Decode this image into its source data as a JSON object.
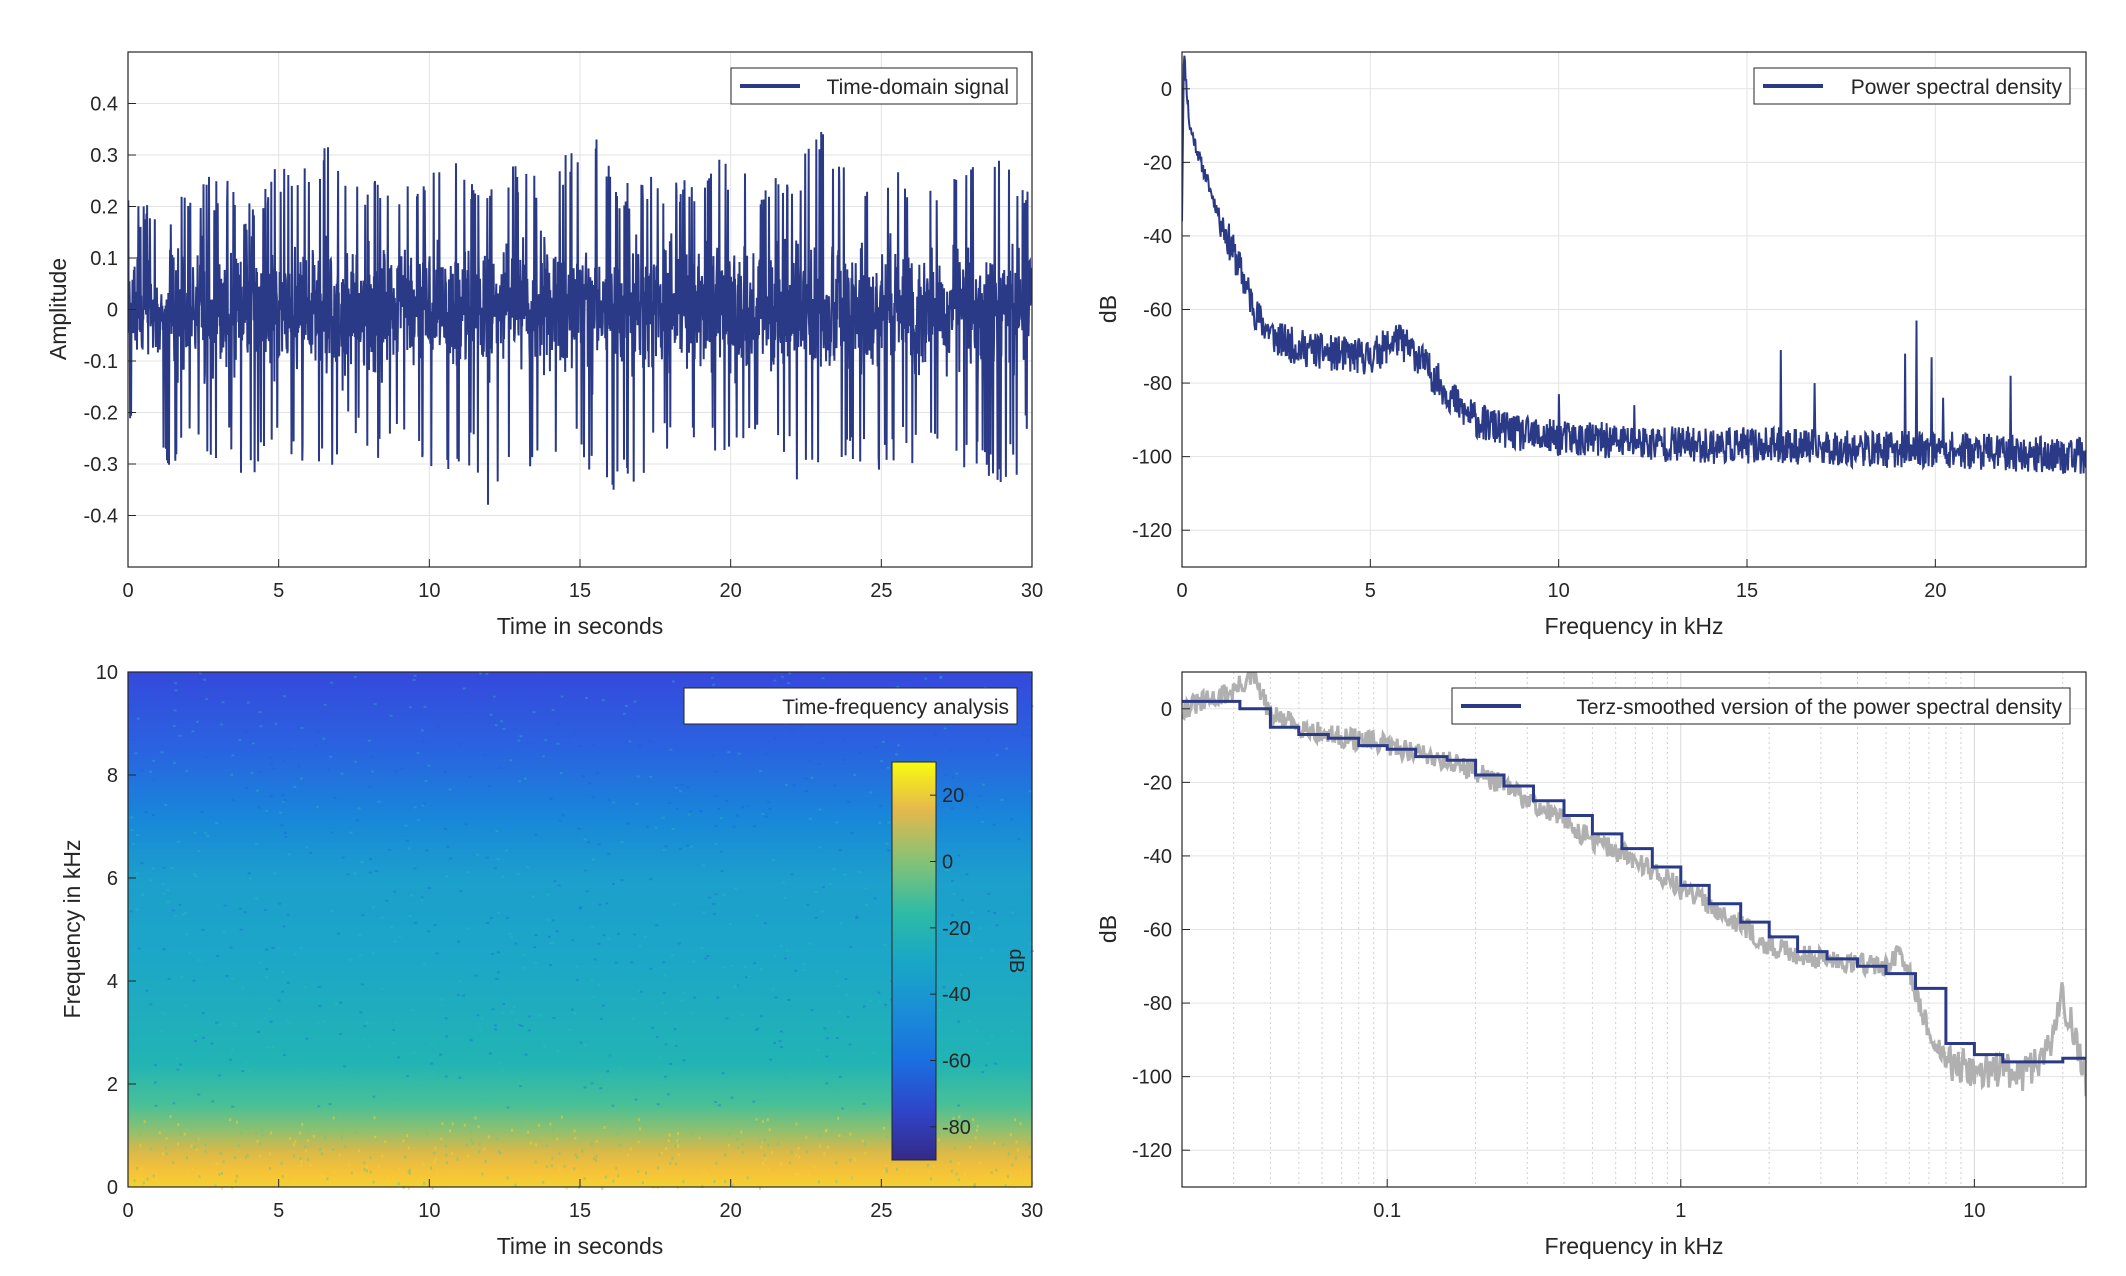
{
  "figure": {
    "panels": [
      {
        "id": "time-domain",
        "legend": "Time-domain signal",
        "xlabel": "Time in seconds",
        "ylabel": "Amplitude",
        "xticks": [
          "0",
          "5",
          "10",
          "15",
          "20",
          "25",
          "30"
        ],
        "yticks": [
          "-0.4",
          "-0.3",
          "-0.2",
          "-0.1",
          "0",
          "0.1",
          "0.2",
          "0.3",
          "0.4"
        ]
      },
      {
        "id": "psd",
        "legend": "Power spectral density",
        "xlabel": "Frequency in kHz",
        "ylabel": "dB",
        "xticks": [
          "0",
          "5",
          "10",
          "15",
          "20"
        ],
        "yticks": [
          "-120",
          "-100",
          "-80",
          "-60",
          "-40",
          "-20",
          "0"
        ]
      },
      {
        "id": "spectrogram",
        "legend": "Time-frequency analysis",
        "xlabel": "Time in seconds",
        "ylabel": "Frequency in kHz",
        "xticks": [
          "0",
          "5",
          "10",
          "15",
          "20",
          "25",
          "30"
        ],
        "yticks": [
          "0",
          "2",
          "4",
          "6",
          "8",
          "10"
        ],
        "colorbar_label": "dB",
        "colorbar_ticks": [
          "20",
          "0",
          "-20",
          "-40",
          "-60",
          "-80"
        ]
      },
      {
        "id": "terz",
        "legend": "Terz-smoothed version of the power spectral density",
        "xlabel": "Frequency in kHz",
        "ylabel": "dB",
        "xticks": [
          "0.1",
          "1",
          "10"
        ],
        "yticks": [
          "-120",
          "-100",
          "-80",
          "-60",
          "-40",
          "-20",
          "0"
        ]
      }
    ]
  },
  "chart_data": [
    {
      "type": "line",
      "legend": "Time-domain signal",
      "xlabel": "Time in seconds",
      "ylabel": "Amplitude",
      "xlim": [
        0,
        30
      ],
      "ylim": [
        -0.5,
        0.5
      ],
      "grid": true,
      "legend_position": "top-right",
      "color": "#2b3a87",
      "x": [
        0,
        1.2,
        2.4,
        3.6,
        3.9,
        4.8,
        6.6,
        7.2,
        8.4,
        9.6,
        10.2,
        11.4,
        12.0,
        12.6,
        13.8,
        15.3,
        16.2,
        17.4,
        18.6,
        19.8,
        21.0,
        22.2,
        23.1,
        24.6,
        25.8,
        27.0,
        28.2,
        29.4,
        30.0
      ],
      "envelope_max": [
        0.22,
        0.2,
        0.26,
        0.25,
        0.2,
        0.27,
        0.34,
        0.25,
        0.27,
        0.23,
        0.33,
        0.27,
        0.27,
        0.29,
        0.27,
        0.37,
        0.25,
        0.27,
        0.25,
        0.3,
        0.26,
        0.28,
        0.36,
        0.27,
        0.28,
        0.26,
        0.31,
        0.28,
        0.22
      ],
      "envelope_min": [
        -0.22,
        -0.31,
        -0.28,
        -0.3,
        -0.39,
        -0.28,
        -0.32,
        -0.26,
        -0.3,
        -0.28,
        -0.37,
        -0.3,
        -0.4,
        -0.33,
        -0.3,
        -0.31,
        -0.41,
        -0.29,
        -0.29,
        -0.31,
        -0.29,
        -0.33,
        -0.3,
        -0.34,
        -0.3,
        -0.31,
        -0.33,
        -0.34,
        -0.22
      ],
      "typical_range": [
        -0.15,
        0.15
      ]
    },
    {
      "type": "line",
      "legend": "Power spectral density",
      "xlabel": "Frequency in kHz",
      "ylabel": "dB",
      "xlim": [
        0,
        24
      ],
      "ylim": [
        -130,
        10
      ],
      "grid": true,
      "legend_position": "top-right",
      "color": "#2b3a87",
      "x": [
        0,
        0.05,
        0.2,
        0.5,
        1.0,
        1.5,
        2.0,
        2.5,
        3.0,
        4.0,
        5.0,
        5.7,
        6.2,
        7.0,
        7.5,
        8.0,
        9.0,
        10.0,
        12.0,
        14.0,
        16.0,
        18.0,
        20.0,
        22.0,
        24.0
      ],
      "y": [
        -35,
        10,
        -10,
        -20,
        -35,
        -48,
        -62,
        -68,
        -70,
        -72,
        -73,
        -68,
        -72,
        -82,
        -88,
        -91,
        -94,
        -95,
        -96,
        -97,
        -97,
        -98,
        -98,
        -99,
        -100
      ],
      "spikes": [
        {
          "x": 10.0,
          "y": -83
        },
        {
          "x": 12.0,
          "y": -86
        },
        {
          "x": 15.9,
          "y": -71
        },
        {
          "x": 16.8,
          "y": -80
        },
        {
          "x": 19.2,
          "y": -72
        },
        {
          "x": 19.5,
          "y": -63
        },
        {
          "x": 19.9,
          "y": -73
        },
        {
          "x": 20.2,
          "y": -84
        },
        {
          "x": 22.0,
          "y": -78
        }
      ]
    },
    {
      "type": "heatmap",
      "legend": "Time-frequency analysis",
      "xlabel": "Time in seconds",
      "ylabel": "Frequency in kHz",
      "xlim": [
        0,
        30
      ],
      "ylim": [
        0,
        10
      ],
      "colorbar": {
        "label": "dB",
        "range": [
          -90,
          30
        ],
        "ticks": [
          20,
          0,
          -20,
          -40,
          -60,
          -80
        ],
        "colormap": "parula"
      },
      "frequency_profile": {
        "frequency": [
          0,
          0.5,
          1,
          1.5,
          2,
          3,
          4,
          5,
          6,
          7,
          8,
          9,
          10
        ],
        "level_db": [
          10,
          0,
          -10,
          -18,
          -25,
          -33,
          -38,
          -40,
          -42,
          -48,
          -55,
          -60,
          -64
        ]
      }
    },
    {
      "type": "line",
      "legend": "Terz-smoothed version of the power spectral density",
      "xlabel": "Frequency in kHz",
      "ylabel": "dB",
      "xscale": "log",
      "xlim": [
        0.02,
        24
      ],
      "ylim": [
        -130,
        10
      ],
      "grid": true,
      "legend_position": "top-right",
      "series": [
        {
          "name": "Terz-smoothed version of the power spectral density",
          "color": "#2b3a87",
          "step": true,
          "x": [
            0.02,
            0.025,
            0.0315,
            0.04,
            0.05,
            0.063,
            0.08,
            0.1,
            0.125,
            0.16,
            0.2,
            0.25,
            0.315,
            0.4,
            0.5,
            0.63,
            0.8,
            1,
            1.25,
            1.6,
            2,
            2.5,
            3.15,
            4,
            5,
            6.3,
            8,
            10,
            12.5,
            16,
            20
          ],
          "y": [
            2,
            2,
            0,
            -5,
            -7,
            -8,
            -10,
            -11,
            -13,
            -14,
            -18,
            -21,
            -25,
            -29,
            -34,
            -38,
            -43,
            -48,
            -53,
            -58,
            -62,
            -66,
            -68,
            -70,
            -72,
            -76,
            -91,
            -94,
            -96,
            -96,
            -95
          ]
        },
        {
          "color": "#b0b0b0",
          "x": [
            0.02,
            0.03,
            0.035,
            0.04,
            0.06,
            0.1,
            0.2,
            0.3,
            0.5,
            1,
            2,
            3,
            5,
            5.5,
            6,
            7,
            8,
            10,
            15,
            18,
            20,
            24
          ],
          "y": [
            0,
            5,
            9,
            -2,
            -7,
            -10,
            -17,
            -25,
            -36,
            -49,
            -65,
            -68,
            -70,
            -67,
            -72,
            -88,
            -96,
            -98,
            -99,
            -92,
            -78,
            -102
          ]
        }
      ]
    }
  ]
}
